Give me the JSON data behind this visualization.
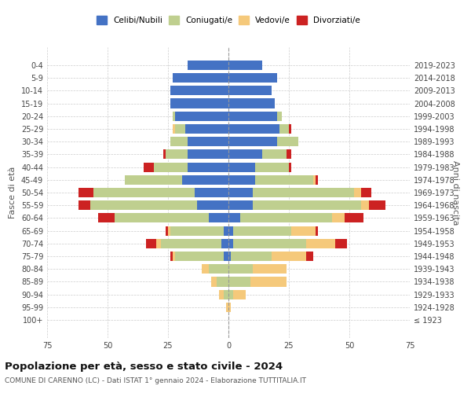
{
  "age_groups": [
    "100+",
    "95-99",
    "90-94",
    "85-89",
    "80-84",
    "75-79",
    "70-74",
    "65-69",
    "60-64",
    "55-59",
    "50-54",
    "45-49",
    "40-44",
    "35-39",
    "30-34",
    "25-29",
    "20-24",
    "15-19",
    "10-14",
    "5-9",
    "0-4"
  ],
  "birth_years": [
    "≤ 1923",
    "1924-1928",
    "1929-1933",
    "1934-1938",
    "1939-1943",
    "1944-1948",
    "1949-1953",
    "1954-1958",
    "1959-1963",
    "1964-1968",
    "1969-1973",
    "1974-1978",
    "1979-1983",
    "1984-1988",
    "1989-1993",
    "1994-1998",
    "1999-2003",
    "2004-2008",
    "2009-2013",
    "2014-2018",
    "2019-2023"
  ],
  "male": {
    "celibi": [
      0,
      0,
      0,
      0,
      0,
      2,
      3,
      2,
      8,
      13,
      14,
      19,
      17,
      17,
      17,
      18,
      22,
      24,
      24,
      23,
      17
    ],
    "coniugati": [
      0,
      0,
      2,
      5,
      8,
      20,
      25,
      22,
      39,
      44,
      42,
      24,
      14,
      9,
      7,
      4,
      1,
      0,
      0,
      0,
      0
    ],
    "vedovi": [
      0,
      1,
      2,
      2,
      3,
      1,
      2,
      1,
      0,
      0,
      0,
      0,
      0,
      0,
      0,
      1,
      0,
      0,
      0,
      0,
      0
    ],
    "divorziati": [
      0,
      0,
      0,
      0,
      0,
      1,
      4,
      1,
      7,
      5,
      6,
      0,
      4,
      1,
      0,
      0,
      0,
      0,
      0,
      0,
      0
    ]
  },
  "female": {
    "nubili": [
      0,
      0,
      0,
      0,
      0,
      1,
      2,
      2,
      5,
      10,
      10,
      11,
      11,
      14,
      20,
      21,
      20,
      19,
      18,
      20,
      14
    ],
    "coniugate": [
      0,
      0,
      2,
      9,
      10,
      17,
      30,
      24,
      38,
      45,
      42,
      24,
      14,
      10,
      9,
      4,
      2,
      0,
      0,
      0,
      0
    ],
    "vedove": [
      0,
      1,
      5,
      15,
      14,
      14,
      12,
      10,
      5,
      3,
      3,
      1,
      0,
      0,
      0,
      0,
      0,
      0,
      0,
      0,
      0
    ],
    "divorziate": [
      0,
      0,
      0,
      0,
      0,
      3,
      5,
      1,
      8,
      7,
      4,
      1,
      1,
      2,
      0,
      1,
      0,
      0,
      0,
      0,
      0
    ]
  },
  "colors": {
    "celibi": "#4472C4",
    "coniugati": "#BFCF8F",
    "vedovi": "#F5C97B",
    "divorziati": "#CC2222"
  },
  "title": "Popolazione per età, sesso e stato civile - 2024",
  "subtitle": "COMUNE DI CARENNO (LC) - Dati ISTAT 1° gennaio 2024 - Elaborazione TUTTITALIA.IT",
  "ylabel_left": "Fasce di età",
  "ylabel_right": "Anni di nascita",
  "xlim": 75,
  "legend_labels": [
    "Celibi/Nubili",
    "Coniugati/e",
    "Vedovi/e",
    "Divorziati/e"
  ],
  "bg_color": "#FFFFFF",
  "grid_color": "#CCCCCC"
}
